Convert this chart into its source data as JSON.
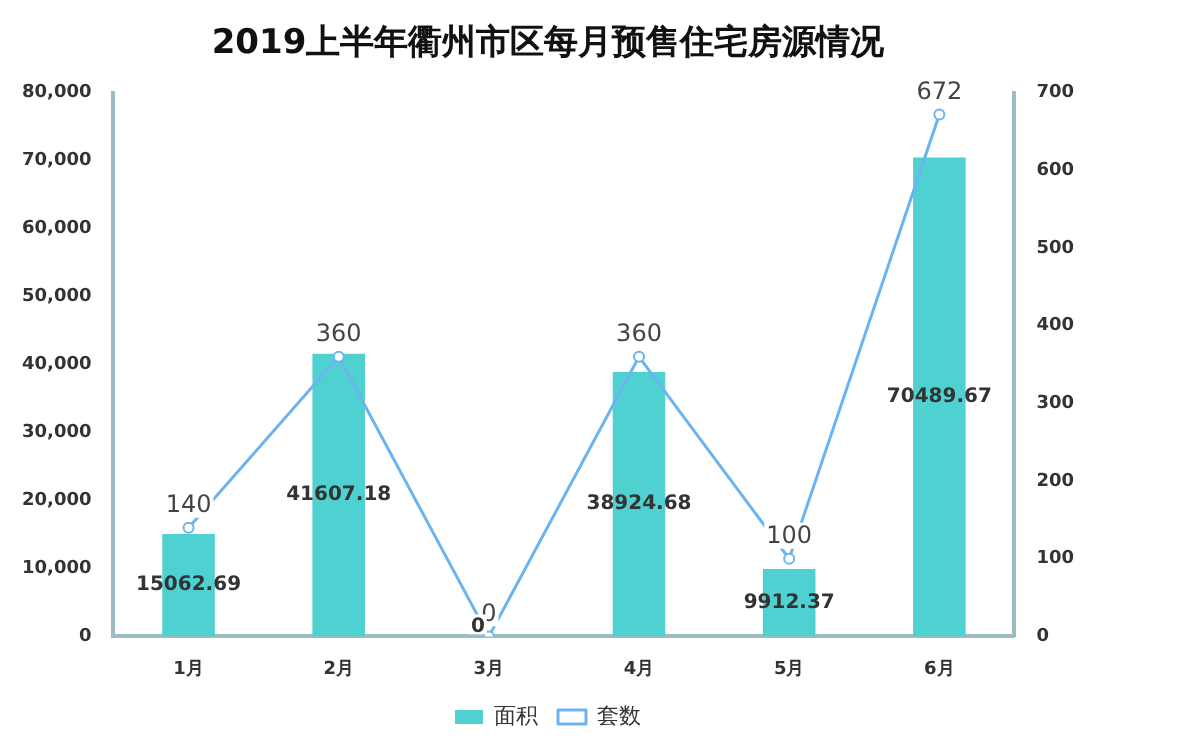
{
  "chart_data": {
    "type": "bar",
    "title": "2019上半年衢州市区每月预售住宅房源情况",
    "categories": [
      "1月",
      "2月",
      "3月",
      "4月",
      "5月",
      "6月"
    ],
    "series": [
      {
        "name": "面积",
        "color": "#4fd1d1",
        "values": [
          15062.69,
          41607.18,
          0,
          38924.68,
          9912.37,
          70489.67
        ]
      },
      {
        "name": "套数",
        "type": "line",
        "axis": "y2",
        "color": "#6cb4f0",
        "values": [
          140,
          360,
          0,
          360,
          100,
          672
        ]
      }
    ],
    "ylim": [
      0,
      80000
    ],
    "yticks": [
      {
        "value": 0,
        "label": "0"
      },
      {
        "value": 10000,
        "label": "10,000"
      },
      {
        "value": 20000,
        "label": "20,000"
      },
      {
        "value": 30000,
        "label": "30,000"
      },
      {
        "value": 40000,
        "label": "40,000"
      },
      {
        "value": 50000,
        "label": "50,000"
      },
      {
        "value": 60000,
        "label": "60,000"
      },
      {
        "value": 70000,
        "label": "70,000"
      },
      {
        "value": 80000,
        "label": "80,000"
      }
    ],
    "y2lim": [
      0,
      700
    ],
    "y2ticks": [
      0,
      100,
      200,
      300,
      400,
      500,
      600,
      700
    ],
    "grid": false,
    "legend": "bottom",
    "marker": "circle",
    "line_style": "solid",
    "data_labels": true
  }
}
